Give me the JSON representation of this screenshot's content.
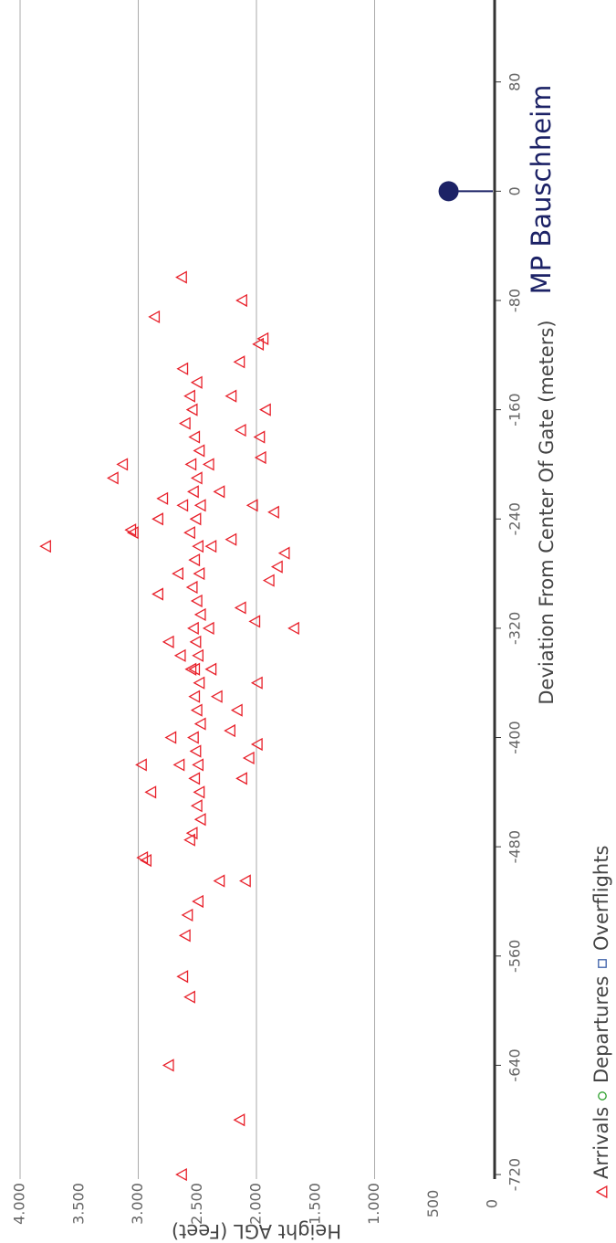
{
  "chart_data": {
    "type": "scatter",
    "x_label": "Deviation From Center Of Gate (meters)",
    "y_label": "Height AGL (Feet)",
    "xlim": [
      -730,
      140
    ],
    "ylim": [
      0,
      4170
    ],
    "xticks": [
      -720,
      -640,
      -560,
      -480,
      -400,
      -320,
      -240,
      -160,
      -80,
      0,
      80
    ],
    "yticks": [
      0,
      500,
      {
        "value": 1000,
        "label": "1.000"
      },
      {
        "value": 1500,
        "label": "1.500"
      },
      {
        "value": 2000,
        "label": "2.000"
      },
      {
        "value": 2500,
        "label": "2.500"
      },
      {
        "value": 3000,
        "label": "3.000"
      },
      {
        "value": 3500,
        "label": "3.500"
      },
      {
        "value": 4000,
        "label": "4.000"
      }
    ],
    "grid": true,
    "series": [
      {
        "name": "Arrivals",
        "color": "#e8202a",
        "marker": "triangle",
        "x": [
          -720,
          -680,
          -640,
          -590,
          -575,
          -545,
          -530,
          -520,
          -505,
          -505,
          -490,
          -488,
          -475,
          -470,
          -440,
          -420,
          -430,
          -415,
          -405,
          -400,
          -395,
          -380,
          -370,
          -360,
          -350,
          -340,
          -330,
          -320,
          -315,
          -305,
          -295,
          -285,
          -275,
          -265,
          -260,
          -255,
          -250,
          -248,
          -240,
          -235,
          -230,
          -225,
          -220,
          -210,
          -200,
          -195,
          -180,
          -175,
          -160,
          -150,
          -130,
          -125,
          -112,
          -108,
          -92,
          -80,
          -63,
          -180,
          -190,
          -200,
          -210,
          -220,
          -230,
          -240,
          -250,
          -260,
          -270,
          -280,
          -290,
          -300,
          -310,
          -320,
          -330,
          -340,
          -350,
          -360,
          -370,
          -380,
          -390,
          -400,
          -410,
          -420,
          -430,
          -440,
          -450,
          -460,
          -150,
          -160,
          -140,
          -170,
          -230,
          -280,
          -320,
          -260,
          -200,
          -350,
          -420
        ],
        "values": [
          2630,
          2140,
          2740,
          2560,
          2620,
          2600,
          2580,
          2490,
          2310,
          2090,
          2930,
          2960,
          2560,
          2540,
          2890,
          2970,
          2120,
          2060,
          1990,
          2720,
          2220,
          2160,
          2330,
          1990,
          2520,
          2640,
          2740,
          1680,
          2010,
          2130,
          2830,
          1890,
          1820,
          1760,
          3780,
          2210,
          3040,
          3060,
          2830,
          1850,
          2030,
          2790,
          2310,
          3210,
          3130,
          1960,
          1970,
          2130,
          1920,
          2210,
          2620,
          2140,
          1980,
          1940,
          2860,
          2120,
          2630,
          2520,
          2480,
          2550,
          2500,
          2530,
          2470,
          2510,
          2560,
          2490,
          2520,
          2480,
          2540,
          2500,
          2470,
          2530,
          2510,
          2490,
          2550,
          2480,
          2520,
          2500,
          2470,
          2530,
          2510,
          2490,
          2520,
          2480,
          2500,
          2470,
          2560,
          2540,
          2500,
          2600,
          2620,
          2660,
          2400,
          2380,
          2400,
          2380,
          2650
        ]
      },
      {
        "name": "Departures",
        "color": "#2ca02c",
        "marker": "circle",
        "x": [],
        "values": []
      },
      {
        "name": "Overflights",
        "color": "#3a5fa8",
        "marker": "square",
        "x": [],
        "values": []
      }
    ],
    "annotations": [
      {
        "text": "MP Bauschheim",
        "x": 0,
        "y": 374,
        "color": "#1c2266"
      }
    ]
  }
}
